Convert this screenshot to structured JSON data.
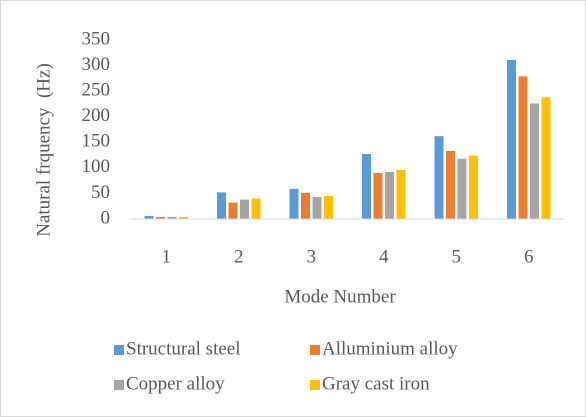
{
  "chart_data": {
    "type": "bar",
    "y_label": "Natural frquency  (Hz)",
    "x_label": "Mode Number",
    "categories": [
      "1",
      "2",
      "3",
      "4",
      "5",
      "6"
    ],
    "series": [
      {
        "name": "Structural steel",
        "color": "#5b9bd5",
        "values": [
          6,
          52,
          59,
          127,
          162,
          311
        ]
      },
      {
        "name": "Alluminium alloy",
        "color": "#ed7d31",
        "values": [
          4,
          32,
          51,
          90,
          133,
          279
        ]
      },
      {
        "name": "Copper alloy",
        "color": "#a5a5a5",
        "values": [
          4,
          38,
          43,
          92,
          118,
          226
        ]
      },
      {
        "name": "Gray cast iron",
        "color": "#ffc000",
        "values": [
          4,
          40,
          45,
          96,
          124,
          238
        ]
      }
    ],
    "ylim": [
      0,
      350
    ],
    "yticks": [
      0,
      50,
      100,
      150,
      200,
      250,
      300,
      350
    ],
    "grid": false,
    "legend": "bottom"
  }
}
